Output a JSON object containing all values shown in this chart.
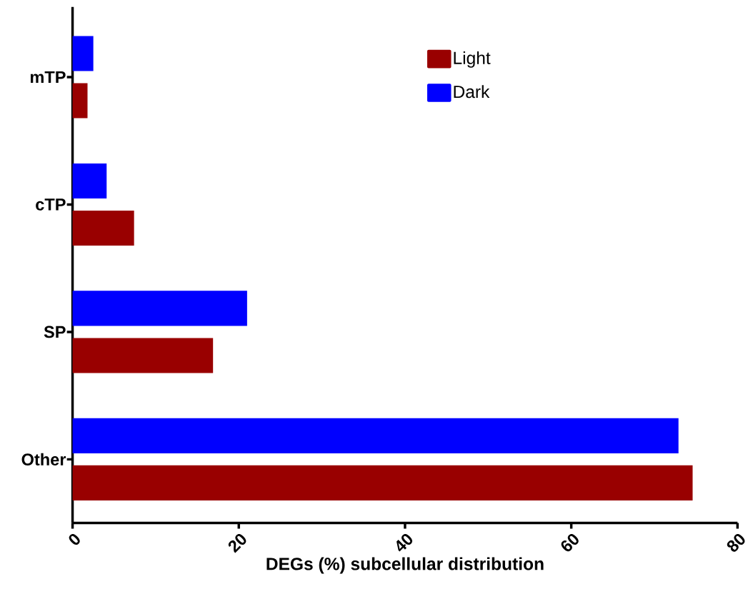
{
  "chart_data": {
    "type": "bar",
    "orientation": "horizontal",
    "xlabel": "DEGs (%) subcellular distribution",
    "categories": [
      "mTP",
      "cTP",
      "SP",
      "Other"
    ],
    "series": [
      {
        "name": "Light",
        "color": "#990000",
        "values": [
          1.8,
          7.4,
          16.9,
          74.6
        ]
      },
      {
        "name": "Dark",
        "color": "#0000ff",
        "values": [
          2.5,
          4.1,
          21.0,
          72.9
        ]
      }
    ],
    "xlim": [
      0,
      80
    ],
    "xticks": [
      0,
      20,
      40,
      60,
      80
    ],
    "grid": false,
    "legend": "top right"
  }
}
